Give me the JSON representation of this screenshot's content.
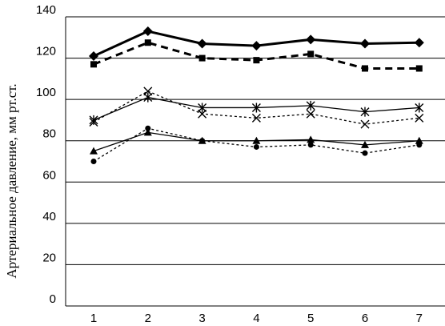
{
  "chart_data": {
    "type": "line",
    "title": "",
    "xlabel": "",
    "ylabel": "Артериальное давление, мм рт.ст.",
    "x": [
      1,
      2,
      3,
      4,
      5,
      6,
      7
    ],
    "x_tick_labels": [
      "1",
      "2",
      "3",
      "4",
      "5",
      "6",
      "7"
    ],
    "y_tick_labels": [
      "0",
      "20",
      "40",
      "60",
      "80",
      "100",
      "120",
      "140"
    ],
    "ylim": [
      0,
      140
    ],
    "grid": "horizontal",
    "legend": "none",
    "series": [
      {
        "values": [
          121,
          133,
          127,
          126,
          129,
          127,
          127.5
        ],
        "style": "solid-thick",
        "marker": "diamond"
      },
      {
        "values": [
          117,
          127.5,
          120,
          119,
          122,
          115,
          115
        ],
        "style": "dashed-thick",
        "marker": "square"
      },
      {
        "values": [
          90,
          101,
          96,
          96,
          97,
          94,
          96
        ],
        "style": "solid",
        "marker": "asterisk"
      },
      {
        "values": [
          89,
          104,
          93,
          91,
          93,
          88,
          91
        ],
        "style": "dotted",
        "marker": "x"
      },
      {
        "values": [
          75,
          84,
          80,
          80,
          80.5,
          78,
          80
        ],
        "style": "solid",
        "marker": "triangle"
      },
      {
        "values": [
          70,
          86,
          80,
          77,
          78,
          74,
          78
        ],
        "style": "dotted",
        "marker": "circle"
      }
    ]
  }
}
